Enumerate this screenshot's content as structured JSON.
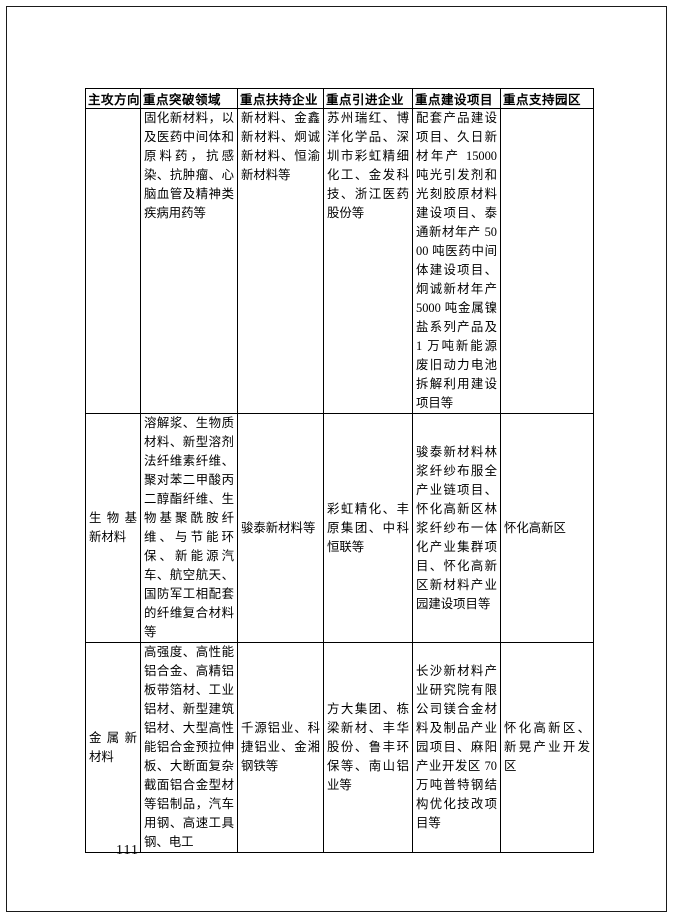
{
  "page": {
    "number": "111"
  },
  "table": {
    "headers": [
      "主攻方向",
      "重点突破领域",
      "重点扶持企业",
      "重点引进企业",
      "重点建设项目",
      "重点支持园区"
    ],
    "rows": [
      {
        "direction": "",
        "breakthrough": "固化新材料，以及医药中间体和原料药，抗感染、抗肿瘤、心脑血管及精神类疾病用药等",
        "support": "新材料、金鑫新材料、炯诚新材料、恒渝新材料等",
        "introduce": "苏州瑞红、博洋化学品、深圳市彩虹精细化工、金发科技、浙江医药股份等",
        "projects": "配套产品建设项目、久日新材年产 15000 吨光引发剂和光刻胶原材料建设项目、泰通新材年产 5000 吨医药中间体建设项目、炯诚新材年产 5000 吨金属镍盐系列产品及 1 万吨新能源废旧动力电池拆解利用建设项目等",
        "parks": ""
      },
      {
        "direction": "生物基新材料",
        "breakthrough": "溶解浆、生物质材料、新型溶剂法纤维素纤维、聚对苯二甲酸丙二醇酯纤维、生物基聚酰胺纤维、与节能环保、新能源汽车、航空航天、国防军工相配套的纤维复合材料等",
        "support": "骏泰新材料等",
        "introduce": "彩虹精化、丰原集团、中科恒联等",
        "projects": "骏泰新材料林浆纤纱布服全产业链项目、怀化高新区林浆纤纱布一体化产业集群项目、怀化高新区新材料产业园建设项目等",
        "parks": "怀化高新区"
      },
      {
        "direction": "金属新材料",
        "breakthrough": "高强度、高性能铝合金、高精铝板带箔材、工业铝材、新型建筑铝材、大型高性能铝合金预拉伸板、大断面复杂截面铝合金型材等铝制品，汽车用钢、高速工具钢、电工",
        "support": "千源铝业、科捷铝业、金湘钢铁等",
        "introduce": "方大集团、栋梁新材、丰华股份、鲁丰环保等、南山铝业等",
        "projects": "长沙新材料产业研究院有限公司镁合金材料及制品产业园项目、麻阳产业开发区 70 万吨普特钢结构优化技改项目等",
        "parks": "怀化高新区、新晃产业开发区"
      }
    ]
  }
}
